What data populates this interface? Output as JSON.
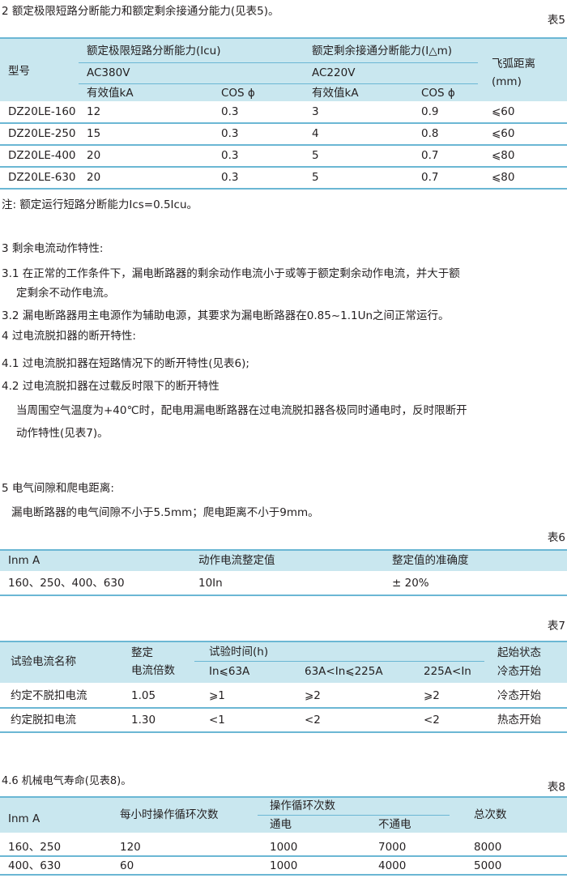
{
  "section2": {
    "heading": "2 额定极限短路分断能力和额定剩余接通分能力(见表5)。",
    "table_label": "表5"
  },
  "table5": {
    "col_model": "型号",
    "group1": "额定极限短路分断能力(Icu)",
    "group1_voltage": "AC380V",
    "group2": "额定剩余接通分断能力(I△m)",
    "group2_voltage": "AC220V",
    "sub_ka": "有效值kA",
    "sub_cos": "COS ϕ",
    "col_arc": "飞弧距离",
    "col_arc_unit": "(mm)",
    "rows": [
      [
        "DZ20LE-160",
        "12",
        "0.3",
        "3",
        "0.9",
        "⩽60"
      ],
      [
        "DZ20LE-250",
        "15",
        "0.3",
        "4",
        "0.8",
        "⩽60"
      ],
      [
        "DZ20LE-400",
        "20",
        "0.3",
        "5",
        "0.7",
        "⩽80"
      ],
      [
        "DZ20LE-630",
        "20",
        "0.3",
        "5",
        "0.7",
        "⩽80"
      ]
    ]
  },
  "note": "注:  额定运行短路分断能力Ics=0.5Icu。",
  "paragraphs": [
    "3 剩余电流动作特性:",
    "3.1 在正常的工作条件下，漏电断路器的剩余动作电流小于或等于额定剩余动作电流，并大于额",
    "定剩余不动作电流。",
    "3.2 漏电断路器用主电源作为辅助电源，其要求为漏电断路器在0.85~1.1Un之间正常运行。",
    "4 过电流脱扣器的断开特性:",
    "4.1 过电流脱扣器在短路情况下的断开特性(见表6);",
    "4.2 过电流脱扣器在过载反时限下的断开特性",
    "当周围空气温度为+40℃时，配电用漏电断路器在过电流脱扣器各极同时通电时，反时限断开",
    "动作特性(见表7)。",
    "5 电气间隙和爬电距离:",
    "漏电断路器的电气间隙不小于5.5mm；爬电距离不小于9mm。"
  ],
  "table6": {
    "label": "表6",
    "headers": [
      "Inm  A",
      "动作电流整定值",
      "整定值的准确度"
    ],
    "row": [
      "160、250、400、630",
      "10In",
      "± 20%"
    ]
  },
  "table7": {
    "label": "表7",
    "col_name": "试验电流名称",
    "col_mult_1": "整定",
    "col_mult_2": "电流倍数",
    "group": "试验时间(h)",
    "sub": [
      "In⩽63A",
      "63A<In⩽225A",
      "225A<In"
    ],
    "col_state_1": "起始状态",
    "col_state_2": "冷态开始",
    "rows": [
      [
        "约定不脱扣电流",
        "1.05",
        "⩾1",
        "⩾2",
        "⩾2",
        "冷态开始"
      ],
      [
        "约定脱扣电流",
        "1.30",
        "<1",
        "<2",
        "<2",
        "热态开始"
      ]
    ]
  },
  "section46": {
    "heading": "4.6 机械电气寿命(见表8)。",
    "table_label": "表8"
  },
  "table8": {
    "col_inm": "Inm  A",
    "col_per_hour": "每小时操作循环次数",
    "group": "操作循环次数",
    "sub": [
      "通电",
      "不通电"
    ],
    "col_total": "总次数",
    "rows": [
      [
        "160、250",
        "120",
        "1000",
        "7000",
        "8000"
      ],
      [
        "400、630",
        "60",
        "1000",
        "4000",
        "5000"
      ]
    ]
  },
  "colors": {
    "header_bg": "#c9e7ef",
    "rule": "#6bb7d4",
    "text": "#231f20"
  }
}
